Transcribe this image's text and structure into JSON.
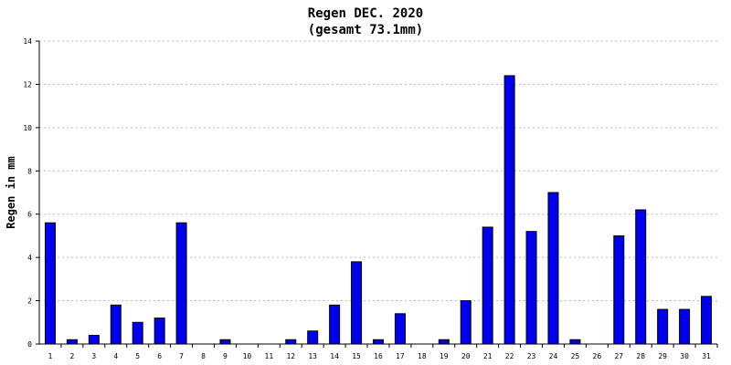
{
  "chart_data": {
    "type": "bar",
    "title": "Regen DEC. 2020",
    "subtitle": "(gesamt 73.1mm)",
    "xlabel": "",
    "ylabel": "Regen in mm",
    "ylim": [
      0,
      14
    ],
    "yticks": [
      "0",
      "2",
      "4",
      "6",
      "8",
      "10",
      "12",
      "14"
    ],
    "grid": true,
    "bar_color": "#0000ee",
    "categories": [
      "1",
      "2",
      "3",
      "4",
      "5",
      "6",
      "7",
      "8",
      "9",
      "10",
      "11",
      "12",
      "13",
      "14",
      "15",
      "16",
      "17",
      "18",
      "19",
      "20",
      "21",
      "22",
      "23",
      "24",
      "25",
      "26",
      "27",
      "28",
      "29",
      "30",
      "31"
    ],
    "values": [
      5.6,
      0.2,
      0.4,
      1.8,
      1.0,
      1.2,
      5.6,
      0,
      0.2,
      0,
      0,
      0.2,
      0.6,
      1.8,
      3.8,
      0.2,
      1.4,
      0,
      0.2,
      2.0,
      5.4,
      12.4,
      5.2,
      7.0,
      0.2,
      0,
      5.0,
      6.2,
      1.6,
      1.6,
      2.2
    ]
  }
}
